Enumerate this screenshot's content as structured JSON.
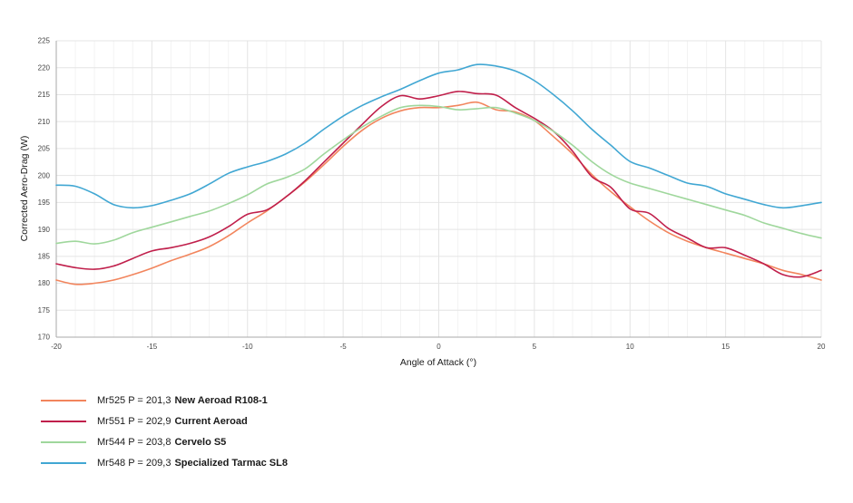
{
  "chart_data": {
    "type": "line",
    "title": "",
    "xlabel": "Angle of Attack (°)",
    "ylabel": "Corrected Aero-Drag (W)",
    "xlim": [
      -20,
      20
    ],
    "ylim": [
      170,
      225
    ],
    "x_ticks": [
      -20,
      -15,
      -10,
      -5,
      0,
      5,
      10,
      15,
      20
    ],
    "y_ticks": [
      170,
      175,
      180,
      185,
      190,
      195,
      200,
      205,
      210,
      215,
      220,
      225
    ],
    "grid": true,
    "legend_position": "bottom-left",
    "x": [
      -20,
      -19,
      -18,
      -17,
      -16,
      -15,
      -14,
      -13,
      -12,
      -11,
      -10,
      -9,
      -8,
      -7,
      -6,
      -5,
      -4,
      -3,
      -2,
      -1,
      0,
      1,
      2,
      3,
      4,
      5,
      6,
      7,
      8,
      9,
      10,
      11,
      12,
      13,
      14,
      15,
      16,
      17,
      18,
      19,
      20
    ],
    "series": [
      {
        "legend_prefix": "Mr525 P = 201,3",
        "name": "New Aeroad R108-1",
        "color": "#f2855d",
        "values": [
          180.6,
          179.8,
          180.0,
          180.6,
          181.6,
          182.8,
          184.2,
          185.4,
          186.8,
          188.8,
          191.2,
          193.4,
          196.0,
          198.8,
          202.0,
          205.4,
          208.4,
          210.6,
          212.0,
          212.6,
          212.6,
          213.0,
          213.6,
          212.2,
          211.8,
          210.2,
          207.2,
          204.0,
          200.2,
          197.0,
          194.2,
          191.6,
          189.4,
          187.8,
          186.6,
          185.6,
          184.6,
          183.6,
          182.4,
          181.6,
          180.6
        ]
      },
      {
        "legend_prefix": "Mr551 P = 202,9",
        "name": "Current Aeroad",
        "color": "#c01f4b",
        "values": [
          183.6,
          182.9,
          182.6,
          183.2,
          184.6,
          186.0,
          186.6,
          187.4,
          188.6,
          190.5,
          192.8,
          193.6,
          196.0,
          199.0,
          202.5,
          206.0,
          209.5,
          212.8,
          214.8,
          214.2,
          214.8,
          215.6,
          215.2,
          214.9,
          212.6,
          210.6,
          208.2,
          204.5,
          199.8,
          197.8,
          193.8,
          193.0,
          190.2,
          188.4,
          186.6,
          186.6,
          185.2,
          183.6,
          181.6,
          181.2,
          182.4
        ]
      },
      {
        "legend_prefix": "Mr544 P = 203,8",
        "name": "Cervelo S5",
        "color": "#9fd79c",
        "values": [
          187.4,
          187.8,
          187.3,
          188.0,
          189.4,
          190.4,
          191.4,
          192.4,
          193.4,
          194.8,
          196.4,
          198.4,
          199.6,
          201.2,
          204.0,
          206.6,
          209.0,
          211.0,
          212.6,
          213.0,
          212.8,
          212.2,
          212.4,
          212.6,
          211.6,
          210.2,
          208.2,
          205.6,
          202.6,
          200.2,
          198.6,
          197.6,
          196.6,
          195.6,
          194.6,
          193.6,
          192.6,
          191.2,
          190.2,
          189.2,
          188.4
        ]
      },
      {
        "legend_prefix": "Mr548 P = 209,3",
        "name": "Specialized Tarmac SL8",
        "color": "#41a7d3",
        "values": [
          198.2,
          198.0,
          196.6,
          194.6,
          194.0,
          194.4,
          195.4,
          196.6,
          198.4,
          200.4,
          201.6,
          202.6,
          204.0,
          206.0,
          208.6,
          211.0,
          213.0,
          214.6,
          216.0,
          217.6,
          219.0,
          219.6,
          220.6,
          220.3,
          219.4,
          217.6,
          215.0,
          212.0,
          208.6,
          205.6,
          202.6,
          201.4,
          200.0,
          198.6,
          198.0,
          196.6,
          195.6,
          194.6,
          194.0,
          194.4,
          195.0
        ]
      }
    ],
    "style": {
      "grid_major_color": "#e4e4e4",
      "grid_minor_color": "#f3f3f3",
      "axis_color": "#aaaaaa",
      "tick_label_color": "#444444",
      "line_width": 1.6
    }
  }
}
